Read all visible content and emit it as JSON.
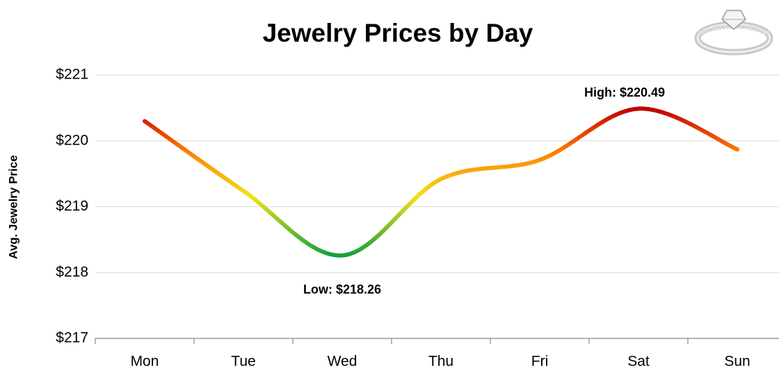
{
  "chart_data": {
    "type": "line",
    "title": "Jewelry Prices by Day",
    "y_label": "Avg. Jewelry Price",
    "categories": [
      "Mon",
      "Tue",
      "Wed",
      "Thu",
      "Fri",
      "Sat",
      "Sun"
    ],
    "values": [
      220.3,
      219.24,
      218.26,
      219.42,
      219.71,
      220.49,
      219.87
    ],
    "value_labels": [
      null,
      null,
      "Low: $218.26",
      null,
      null,
      "High: $220.49",
      null
    ],
    "value_label_colors": [
      null,
      null,
      "#1e8a2e",
      null,
      null,
      "#000000",
      null
    ],
    "gradient_colors": [
      "#c00000",
      "#ff8000",
      "#f2e21a",
      "#16a03a"
    ],
    "ylim": [
      217,
      221
    ],
    "yticks": [
      {
        "value": 217,
        "label": "$217"
      },
      {
        "value": 218,
        "label": "$218"
      },
      {
        "value": 219,
        "label": "$219"
      },
      {
        "value": 220,
        "label": "$220"
      },
      {
        "value": 221,
        "label": "$221"
      }
    ],
    "grid": true,
    "smooth": true
  }
}
